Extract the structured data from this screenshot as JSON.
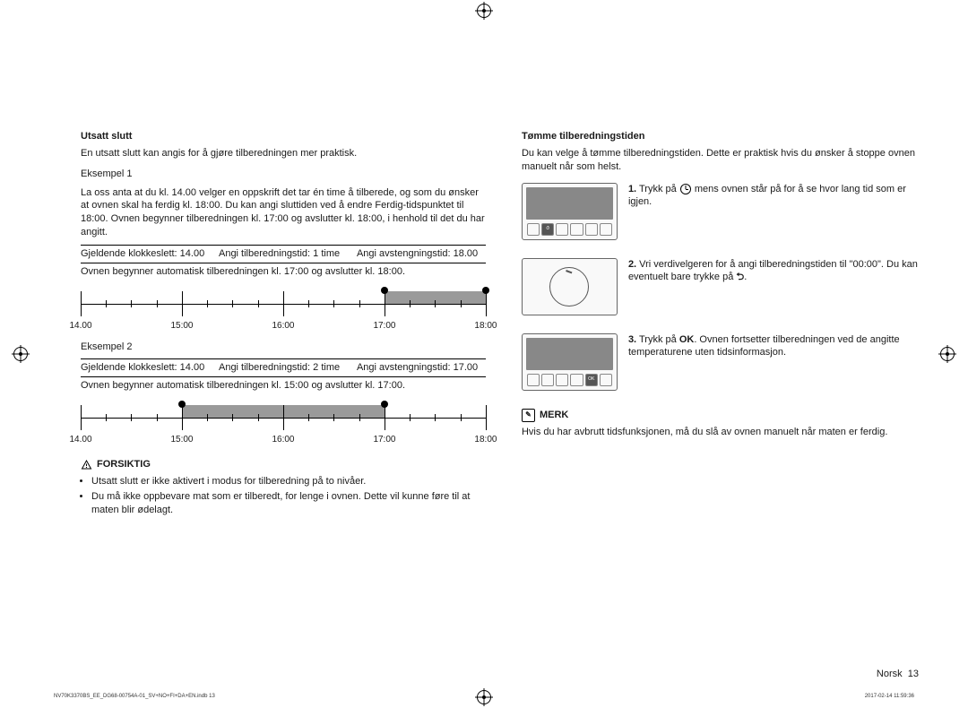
{
  "left": {
    "h1": "Utsatt slutt",
    "intro": "En utsatt slutt kan angis for å gjøre tilberedningen mer praktisk.",
    "ex1_title": "Eksempel 1",
    "ex1_text": "La oss anta at du kl. 14.00 velger en oppskrift det tar én time å tilberede, og som du ønsker at ovnen skal ha ferdig kl. 18:00. Du kan angi sluttiden ved å endre Ferdig-tidspunktet til 18:00. Ovnen begynner tilberedningen kl. 17:00 og avslutter kl. 18:00, i henhold til det du har angitt.",
    "ex1_r_a": "Gjeldende klokkeslett: 14.00",
    "ex1_r_b": "Angi tilberedningstid: 1 time",
    "ex1_r_c": "Angi avstengningstid: 18.00",
    "ex1_sum": "Ovnen begynner automatisk tilberedningen kl. 17:00 og avslutter kl. 18:00.",
    "ex2_title": "Eksempel 2",
    "ex2_r_a": "Gjeldende klokkeslett: 14.00",
    "ex2_r_b": "Angi tilberedningstid: 2 time",
    "ex2_r_c": "Angi avstengningstid: 17.00",
    "ex2_sum": "Ovnen begynner automatisk tilberedningen kl. 15:00 og avslutter kl. 17:00.",
    "tl_labels": [
      "14.00",
      "15:00",
      "16:00",
      "17:00",
      "18:00"
    ],
    "tl1": {
      "bar_start_pct": 75,
      "bar_end_pct": 100
    },
    "tl2": {
      "bar_start_pct": 25,
      "bar_end_pct": 75
    },
    "caution_label": "FORSIKTIG",
    "caution_items": [
      "Utsatt slutt er ikke aktivert i modus for tilberedning på to nivåer.",
      "Du må ikke oppbevare mat som er tilberedt, for lenge i ovnen. Dette vil kunne føre til at maten blir ødelagt."
    ]
  },
  "right": {
    "h1": "Tømme tilberedningstiden",
    "intro": "Du kan velge å tømme tilberedningstiden. Dette er praktisk hvis du ønsker å stoppe ovnen manuelt når som helst.",
    "s1_pre": "1.",
    "s1_a": " Trykk på ",
    "s1_b": " mens ovnen står på for å se hvor lang tid som er igjen.",
    "s2_pre": "2.",
    "s2_a": " Vri verdivelgeren for å angi tilberedningstiden til \"00:00\". Du kan eventuelt bare trykke på ",
    "s2_end": ".",
    "s3_pre": "3.",
    "s3_a": " Trykk på ",
    "s3_ok": "OK",
    "s3_b": ". Ovnen fortsetter tilberedningen ved de angitte temperaturene uten tidsinformasjon.",
    "ok_btn": "OK",
    "note_label": "MERK",
    "note_text": "Hvis du har avbrutt tidsfunksjonen, må du slå av ovnen manuelt når maten er ferdig."
  },
  "footer_lang": "Norsk",
  "footer_page": "13",
  "printL": "NV70K3370BS_EE_DG68-00754A-01_SV+NO+FI+DA+EN.indb   13",
  "printR": "2017-02-14   11:59:36"
}
